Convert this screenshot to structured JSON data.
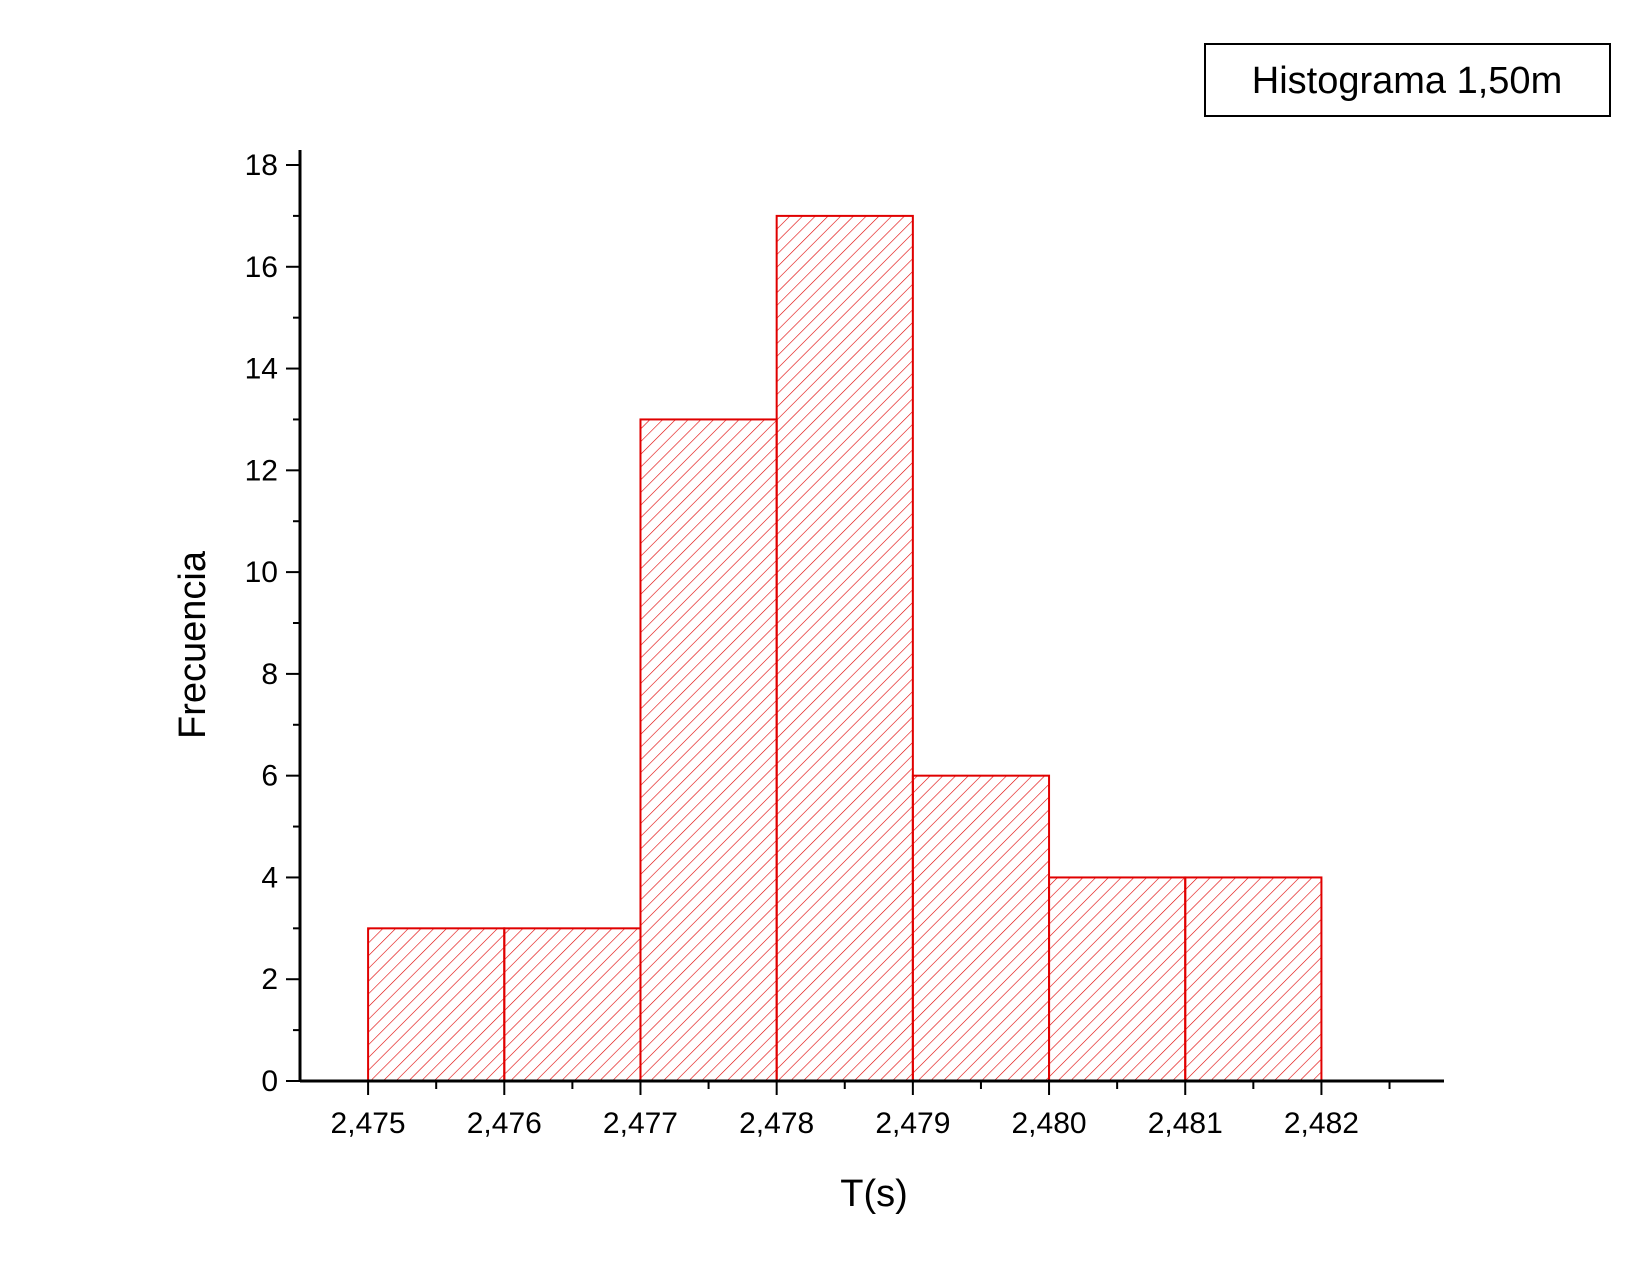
{
  "title": "Histograma 1,50m",
  "chart_data": {
    "type": "bar",
    "title": "Histograma 1,50m",
    "xlabel": "T(s)",
    "ylabel": "Frecuencia",
    "bin_edges": [
      2.475,
      2.476,
      2.477,
      2.478,
      2.479,
      2.48,
      2.481,
      2.482
    ],
    "values": [
      3,
      3,
      13,
      17,
      6,
      4,
      4
    ],
    "xticks": [
      "2,475",
      "2,476",
      "2,477",
      "2,478",
      "2,479",
      "2,480",
      "2,481",
      "2,482"
    ],
    "yticks": [
      "0",
      "2",
      "4",
      "6",
      "8",
      "10",
      "12",
      "14",
      "16",
      "18"
    ],
    "xlim": [
      2.4745,
      2.4829
    ],
    "ylim": [
      0,
      18
    ],
    "grid": false,
    "bar_color": "#e00000",
    "bar_fill": "hatched"
  }
}
